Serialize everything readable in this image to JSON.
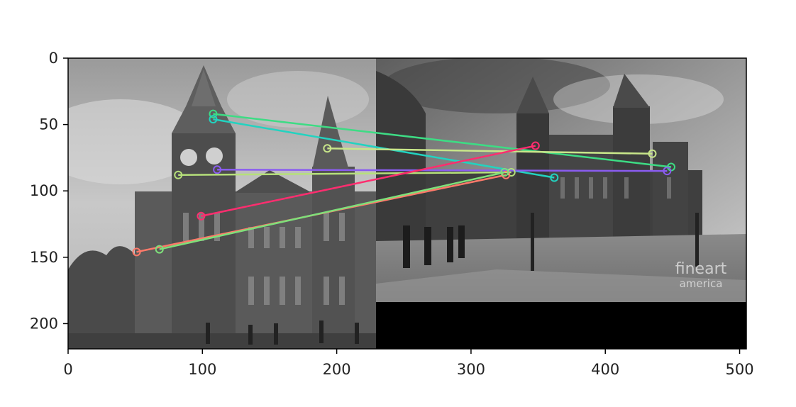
{
  "chart_data": {
    "type": "image_with_feature_matches",
    "xlim": [
      0,
      505
    ],
    "ylim": [
      219,
      0
    ],
    "y_inverted": true,
    "x_ticks": [
      0,
      100,
      200,
      300,
      400,
      500
    ],
    "y_ticks": [
      0,
      50,
      100,
      150,
      200
    ],
    "grid": false,
    "watermark": {
      "line1": "fineart",
      "line2": "america"
    },
    "left_image": {
      "x_range": [
        0,
        229
      ],
      "y_range": [
        0,
        219
      ]
    },
    "right_image": {
      "x_range": [
        229,
        505
      ],
      "y_range": [
        0,
        182
      ]
    },
    "matches": [
      {
        "x1": 108,
        "y1": 42,
        "x2": 449,
        "y2": 82,
        "color": "#3ddc84"
      },
      {
        "x1": 108,
        "y1": 46,
        "x2": 362,
        "y2": 90,
        "color": "#22d3c0"
      },
      {
        "x1": 193,
        "y1": 68,
        "x2": 435,
        "y2": 72,
        "color": "#c8e68a"
      },
      {
        "x1": 111,
        "y1": 84,
        "x2": 446,
        "y2": 85,
        "color": "#8a5cf0"
      },
      {
        "x1": 82,
        "y1": 88,
        "x2": 330,
        "y2": 86,
        "color": "#b6e07a"
      },
      {
        "x1": 99,
        "y1": 119,
        "x2": 348,
        "y2": 66,
        "color": "#ff2d6f"
      },
      {
        "x1": 51,
        "y1": 146,
        "x2": 326,
        "y2": 88,
        "color": "#ff7a6a"
      },
      {
        "x1": 68,
        "y1": 144,
        "x2": 325,
        "y2": 86,
        "color": "#7ee07a"
      }
    ]
  }
}
